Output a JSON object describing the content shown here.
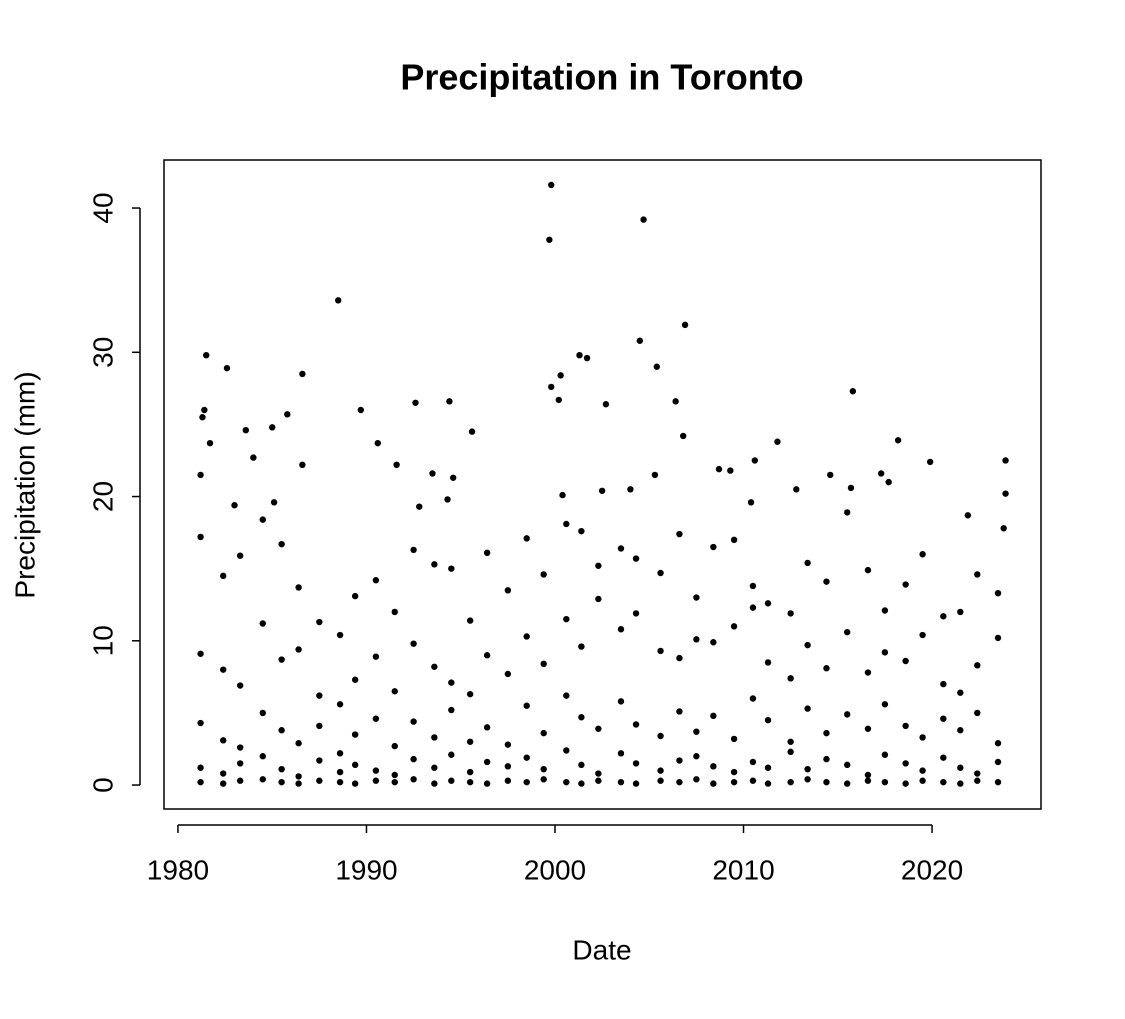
{
  "chart_data": {
    "type": "scatter",
    "title": "Precipitation in Toronto",
    "x_label": "Date",
    "y_label": "Precipitation (mm)",
    "color": "#000000",
    "xlim": [
      1979.26,
      2025.78
    ],
    "xticks": [
      1980,
      1990,
      2000,
      2010,
      2020
    ],
    "ylim": [
      -1.66,
      43.33
    ],
    "yticks": [
      0,
      10,
      20,
      30,
      40
    ],
    "x": [
      1999.8,
      1999.7,
      2004.7,
      1988.5,
      2006.9,
      2004.5,
      1981.5,
      1982.6,
      1986.6,
      2001.3,
      2001.7,
      2005.4,
      1999.8,
      2000.3,
      2000.2,
      2006.4,
      2002.7,
      1992.6,
      1994.4,
      1989.7,
      1981.4,
      1981.3,
      1985.8,
      2015.8,
      1985.0,
      1983.6,
      1995.6,
      2006.8,
      2011.8,
      2018.2,
      1990.6,
      1981.7,
      1984.0,
      1986.6,
      1991.6,
      2010.6,
      2019.9,
      2023.9,
      2008.7,
      2009.3,
      2005.3,
      2014.6,
      2017.3,
      1993.5,
      1994.6,
      1981.2,
      2023.9,
      2017.7,
      2015.7,
      2012.8,
      2004.0,
      2002.5,
      2000.4,
      1994.3,
      1985.1,
      1983.0,
      1992.8,
      2010.4,
      2021.9,
      2023.8,
      1981.2,
      1981.2,
      1981.2,
      1981.2,
      1981.2,
      1982.4,
      1982.4,
      1982.4,
      1982.4,
      1982.4,
      1983.3,
      1983.3,
      1983.3,
      1983.3,
      1983.3,
      1984.5,
      1984.5,
      1984.5,
      1984.5,
      1984.5,
      1985.5,
      1985.5,
      1985.5,
      1985.5,
      1985.5,
      1986.4,
      1986.4,
      1986.4,
      1986.4,
      1986.4,
      1987.5,
      1987.5,
      1987.5,
      1987.5,
      1987.5,
      1988.6,
      1988.6,
      1988.6,
      1988.6,
      1988.6,
      1989.4,
      1989.4,
      1989.4,
      1989.4,
      1989.4,
      1990.5,
      1990.5,
      1990.5,
      1990.5,
      1990.5,
      1991.5,
      1991.5,
      1991.5,
      1991.5,
      1991.5,
      1992.5,
      1992.5,
      1992.5,
      1992.5,
      1992.5,
      1993.6,
      1993.6,
      1993.6,
      1993.6,
      1993.6,
      1994.5,
      1994.5,
      1994.5,
      1994.5,
      1994.5,
      1995.5,
      1995.5,
      1995.5,
      1995.5,
      1995.5,
      1996.4,
      1996.4,
      1996.4,
      1996.4,
      1996.4,
      1997.5,
      1997.5,
      1997.5,
      1997.5,
      1997.5,
      1998.5,
      1998.5,
      1998.5,
      1998.5,
      1998.5,
      1999.4,
      1999.4,
      1999.4,
      1999.4,
      1999.4,
      2000.6,
      2000.6,
      2000.6,
      2000.6,
      2000.6,
      2001.4,
      2001.4,
      2001.4,
      2001.4,
      2001.4,
      2002.3,
      2002.3,
      2002.3,
      2002.3,
      2002.3,
      2003.5,
      2003.5,
      2003.5,
      2003.5,
      2003.5,
      2004.3,
      2004.3,
      2004.3,
      2004.3,
      2004.3,
      2005.6,
      2005.6,
      2005.6,
      2005.6,
      2005.6,
      2006.6,
      2006.6,
      2006.6,
      2006.6,
      2006.6,
      2007.5,
      2007.5,
      2007.5,
      2007.5,
      2007.5,
      2008.4,
      2008.4,
      2008.4,
      2008.4,
      2008.4,
      2009.5,
      2009.5,
      2009.5,
      2009.5,
      2009.5,
      2010.5,
      2010.5,
      2010.5,
      2010.5,
      2010.5,
      2011.3,
      2011.3,
      2011.3,
      2011.3,
      2011.3,
      2012.5,
      2012.5,
      2012.5,
      2012.5,
      2012.5,
      2013.4,
      2013.4,
      2013.4,
      2013.4,
      2013.4,
      2014.4,
      2014.4,
      2014.4,
      2014.4,
      2014.4,
      2015.5,
      2015.5,
      2015.5,
      2015.5,
      2015.5,
      2016.6,
      2016.6,
      2016.6,
      2016.6,
      2016.6,
      2017.5,
      2017.5,
      2017.5,
      2017.5,
      2017.5,
      2018.6,
      2018.6,
      2018.6,
      2018.6,
      2018.6,
      2019.5,
      2019.5,
      2019.5,
      2019.5,
      2019.5,
      2020.6,
      2020.6,
      2020.6,
      2020.6,
      2020.6,
      2021.5,
      2021.5,
      2021.5,
      2021.5,
      2021.5,
      2022.4,
      2022.4,
      2022.4,
      2022.4,
      2022.4,
      2023.5,
      2023.5,
      2023.5,
      2023.5,
      2023.5
    ],
    "values": [
      41.6,
      37.8,
      39.2,
      33.6,
      31.9,
      30.8,
      29.8,
      28.9,
      28.5,
      29.8,
      29.6,
      29.0,
      27.6,
      28.4,
      26.7,
      26.6,
      26.4,
      26.5,
      26.6,
      26.0,
      26.0,
      25.5,
      25.7,
      27.3,
      24.8,
      24.6,
      24.5,
      24.2,
      23.8,
      23.9,
      23.7,
      23.7,
      22.7,
      22.2,
      22.2,
      22.5,
      22.4,
      22.5,
      21.9,
      21.8,
      21.5,
      21.5,
      21.6,
      21.6,
      21.3,
      21.5,
      20.2,
      21.0,
      20.6,
      20.5,
      20.5,
      20.4,
      20.1,
      19.8,
      19.6,
      19.4,
      19.3,
      19.6,
      18.7,
      17.8,
      17.2,
      9.1,
      4.3,
      1.2,
      0.2,
      14.5,
      8.0,
      3.1,
      0.8,
      0.1,
      15.9,
      6.9,
      2.6,
      1.5,
      0.3,
      18.4,
      11.2,
      5.0,
      2.0,
      0.4,
      16.7,
      8.7,
      3.8,
      1.1,
      0.2,
      13.7,
      9.4,
      2.9,
      0.6,
      0.1,
      11.3,
      6.2,
      4.1,
      1.7,
      0.3,
      10.4,
      5.6,
      2.2,
      0.9,
      0.2,
      13.1,
      7.3,
      3.5,
      1.4,
      0.1,
      14.2,
      8.9,
      4.6,
      1.0,
      0.3,
      12.0,
      6.5,
      2.7,
      0.7,
      0.2,
      16.3,
      9.8,
      4.4,
      1.8,
      0.4,
      15.3,
      8.2,
      3.3,
      1.2,
      0.1,
      15.0,
      7.1,
      5.2,
      2.1,
      0.3,
      11.4,
      6.3,
      3.0,
      0.9,
      0.2,
      16.1,
      9.0,
      4.0,
      1.6,
      0.1,
      13.5,
      7.7,
      2.8,
      1.3,
      0.3,
      17.1,
      10.3,
      5.5,
      1.9,
      0.2,
      14.6,
      8.4,
      3.6,
      1.1,
      0.4,
      18.1,
      11.5,
      6.2,
      2.4,
      0.2,
      17.6,
      9.6,
      4.7,
      1.4,
      0.1,
      15.2,
      12.9,
      3.9,
      0.8,
      0.3,
      16.4,
      10.8,
      5.8,
      2.2,
      0.2,
      15.7,
      11.9,
      4.2,
      1.5,
      0.1,
      14.7,
      9.3,
      3.4,
      1.0,
      0.3,
      17.4,
      8.8,
      5.1,
      1.7,
      0.2,
      13.0,
      10.1,
      3.7,
      2.0,
      0.4,
      16.5,
      9.9,
      4.8,
      1.3,
      0.1,
      17.0,
      11.0,
      3.2,
      0.9,
      0.2,
      13.8,
      12.3,
      6.0,
      1.6,
      0.3,
      12.6,
      8.5,
      4.5,
      1.2,
      0.1,
      11.9,
      7.4,
      3.0,
      2.3,
      0.2,
      15.4,
      9.7,
      5.3,
      1.1,
      0.4,
      14.1,
      8.1,
      3.6,
      1.8,
      0.2,
      18.9,
      10.6,
      4.9,
      1.4,
      0.1,
      14.9,
      7.8,
      3.9,
      0.7,
      0.3,
      12.1,
      9.2,
      5.6,
      2.1,
      0.2,
      13.9,
      8.6,
      4.1,
      1.5,
      0.1,
      16.0,
      10.4,
      3.3,
      1.0,
      0.3,
      11.7,
      7.0,
      4.6,
      1.9,
      0.2,
      12.0,
      6.4,
      3.8,
      1.2,
      0.1,
      14.6,
      8.3,
      5.0,
      0.8,
      0.3,
      13.3,
      10.2,
      2.9,
      1.6,
      0.2
    ]
  }
}
